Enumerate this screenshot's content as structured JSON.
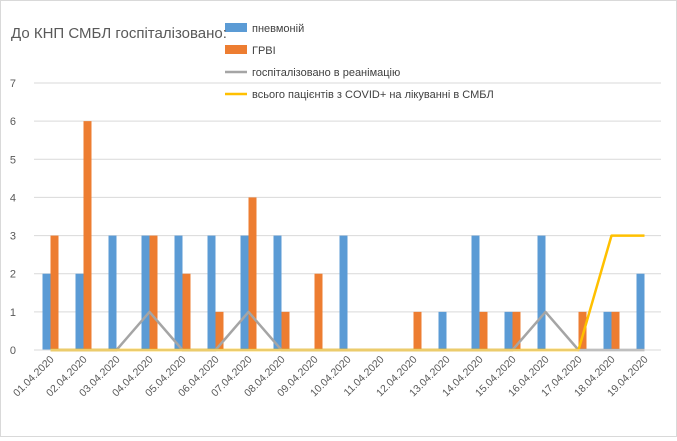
{
  "chart_data": {
    "type": "bar",
    "title": "До КНП СМБЛ госпіталізовано:",
    "categories": [
      "01.04.2020",
      "02.04.2020",
      "03.04.2020",
      "04.04.2020",
      "05.04.2020",
      "06.04.2020",
      "07.04.2020",
      "08.04.2020",
      "09.04.2020",
      "10.04.2020",
      "11.04.2020",
      "12.04.2020",
      "13.04.2020",
      "14.04.2020",
      "15.04.2020",
      "16.04.2020",
      "17.04.2020",
      "18.04.2020",
      "19.04.2020"
    ],
    "ylim": [
      0,
      7
    ],
    "yticks": [
      "0",
      "1",
      "2",
      "3",
      "4",
      "5",
      "6",
      "7"
    ],
    "grid": true,
    "legend_position": "top",
    "series": [
      {
        "name": "пневмоній",
        "kind": "bar",
        "color": "#5b9bd5",
        "values": [
          2,
          2,
          3,
          3,
          3,
          3,
          3,
          3,
          0,
          3,
          0,
          0,
          1,
          3,
          1,
          3,
          0,
          1,
          2
        ]
      },
      {
        "name": "ГРВІ",
        "kind": "bar",
        "color": "#ed7d31",
        "values": [
          3,
          6,
          0,
          3,
          2,
          1,
          4,
          1,
          2,
          0,
          0,
          1,
          0,
          1,
          1,
          0,
          1,
          1,
          0
        ]
      },
      {
        "name": "госпіталізовано в реанімацію",
        "kind": "line",
        "color": "#a5a5a5",
        "values": [
          0,
          0,
          0,
          1,
          0,
          0,
          1,
          0,
          0,
          0,
          0,
          0,
          0,
          0,
          0,
          1,
          0,
          0,
          0
        ]
      },
      {
        "name": "всього пацієнтів з COVID+ на лікуванні в СМБЛ",
        "kind": "line",
        "color": "#ffc000",
        "values": [
          0,
          0,
          0,
          0,
          0,
          0,
          0,
          0,
          0,
          0,
          0,
          0,
          0,
          0,
          0,
          0,
          0,
          3,
          3
        ]
      }
    ]
  }
}
